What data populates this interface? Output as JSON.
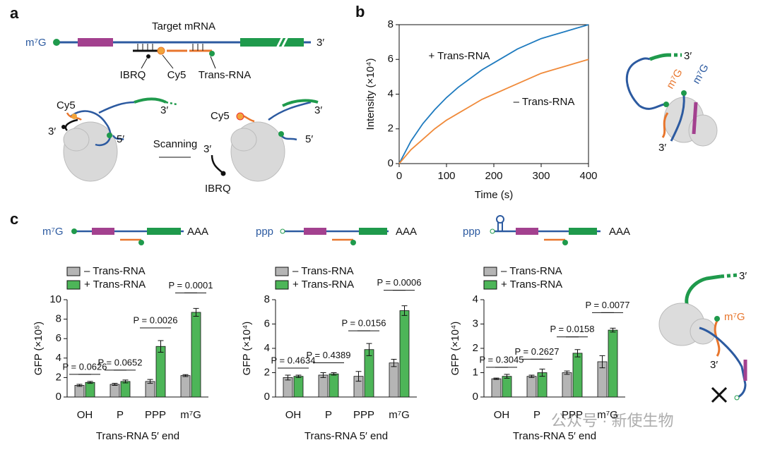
{
  "figure": {
    "panel_labels": [
      "a",
      "b",
      "c"
    ],
    "watermark": "公众号 · 新使生物"
  },
  "panel_a": {
    "mrna_title": "Target mRNA",
    "cap": "m⁷G",
    "three_prime": "3′",
    "labels": [
      "IBRQ",
      "Cy5",
      "Trans-RNA"
    ],
    "scan_left": {
      "probe": "Cy5",
      "end3_trans": "3′",
      "end5": "5′",
      "end3_mrna": "3′"
    },
    "step": "Scanning",
    "scan_right": {
      "probe": "Cy5",
      "end3_trans": "3′",
      "quencher": "IBRQ",
      "end3_mrna": "3′",
      "end5": "5′"
    }
  },
  "panel_b_diagram": {
    "end3_top": "3′",
    "cap_trans": "m⁷G",
    "cap_mrna": "m⁷G",
    "end3_bottom": "3′"
  },
  "panel_c_schematics": [
    {
      "five_end": "m⁷G",
      "tail": "AAA"
    },
    {
      "five_end": "ppp",
      "tail": "AAA"
    },
    {
      "five_end": "ppp",
      "tail": "AAA"
    }
  ],
  "panel_c_diagram": {
    "end3_top": "3′",
    "cap": "m⁷G",
    "end3_bottom": "3′"
  },
  "chart_data": [
    {
      "type": "line",
      "xlabel": "Time (s)",
      "ylabel": "Intensity (×10⁴)",
      "x": [
        0,
        25,
        50,
        75,
        100,
        125,
        150,
        175,
        200,
        225,
        250,
        275,
        300,
        325,
        350,
        375,
        400
      ],
      "series": [
        {
          "name": "+ Trans-RNA",
          "color": "#1f7bbf",
          "values": [
            0,
            1.3,
            2.3,
            3.1,
            3.8,
            4.4,
            4.9,
            5.4,
            5.8,
            6.2,
            6.6,
            6.9,
            7.2,
            7.4,
            7.6,
            7.8,
            8.0
          ]
        },
        {
          "name": "– Trans-RNA",
          "color": "#f08a3a",
          "values": [
            0,
            0.8,
            1.4,
            2.0,
            2.5,
            2.9,
            3.3,
            3.7,
            4.0,
            4.3,
            4.6,
            4.9,
            5.2,
            5.4,
            5.6,
            5.8,
            6.0
          ]
        }
      ],
      "xlim": [
        0,
        400
      ],
      "xticks": [
        0,
        100,
        200,
        300,
        400
      ],
      "ylim": [
        0,
        8
      ],
      "yticks": [
        0,
        2,
        4,
        6,
        8
      ]
    },
    {
      "type": "bar",
      "ylabel": "GFP (×10⁵)",
      "xlabel": "Trans-RNA 5′ end",
      "categories": [
        "OH",
        "P",
        "PPP",
        "m⁷G"
      ],
      "series": [
        {
          "name": "– Trans-RNA",
          "color": "#b5b5b5",
          "values": [
            1.2,
            1.3,
            1.6,
            2.2
          ],
          "errors": [
            0.1,
            0.1,
            0.2,
            0.1
          ]
        },
        {
          "name": "+ Trans-RNA",
          "color": "#4db558",
          "values": [
            1.5,
            1.6,
            5.2,
            8.7
          ],
          "errors": [
            0.1,
            0.15,
            0.6,
            0.4
          ]
        }
      ],
      "p_values": [
        "P = 0.0626",
        "P = 0.0652",
        "P = 0.0026",
        "P = 0.0001"
      ],
      "ylim": [
        0,
        10
      ],
      "yticks": [
        0,
        2,
        4,
        6,
        8,
        10
      ]
    },
    {
      "type": "bar",
      "ylabel": "GFP (×10⁴)",
      "xlabel": "Trans-RNA 5′ end",
      "categories": [
        "OH",
        "P",
        "PPP",
        "m⁷G"
      ],
      "series": [
        {
          "name": "– Trans-RNA",
          "color": "#b5b5b5",
          "values": [
            1.6,
            1.8,
            1.7,
            2.8
          ],
          "errors": [
            0.2,
            0.2,
            0.4,
            0.3
          ]
        },
        {
          "name": "+ Trans-RNA",
          "color": "#4db558",
          "values": [
            1.7,
            1.9,
            3.9,
            7.1
          ],
          "errors": [
            0.1,
            0.1,
            0.5,
            0.4
          ]
        }
      ],
      "p_values": [
        "P = 0.4634",
        "P = 0.4389",
        "P = 0.0156",
        "P = 0.0006"
      ],
      "ylim": [
        0,
        8
      ],
      "yticks": [
        0,
        2,
        4,
        6,
        8
      ]
    },
    {
      "type": "bar",
      "ylabel": "GFP (×10⁴)",
      "xlabel": "Trans-RNA 5′ end",
      "categories": [
        "OH",
        "P",
        "PPP",
        "m⁷G"
      ],
      "series": [
        {
          "name": "– Trans-RNA",
          "color": "#b5b5b5",
          "values": [
            0.75,
            0.85,
            1.0,
            1.45
          ],
          "errors": [
            0.03,
            0.05,
            0.07,
            0.25
          ]
        },
        {
          "name": "+ Trans-RNA",
          "color": "#4db558",
          "values": [
            0.85,
            1.0,
            1.8,
            2.75
          ],
          "errors": [
            0.08,
            0.15,
            0.15,
            0.08
          ]
        }
      ],
      "p_values": [
        "P = 0.3045",
        "P = 0.2627",
        "P = 0.0158",
        "P = 0.0077"
      ],
      "ylim": [
        0,
        4
      ],
      "yticks": [
        0,
        1,
        2,
        3,
        4
      ]
    }
  ]
}
